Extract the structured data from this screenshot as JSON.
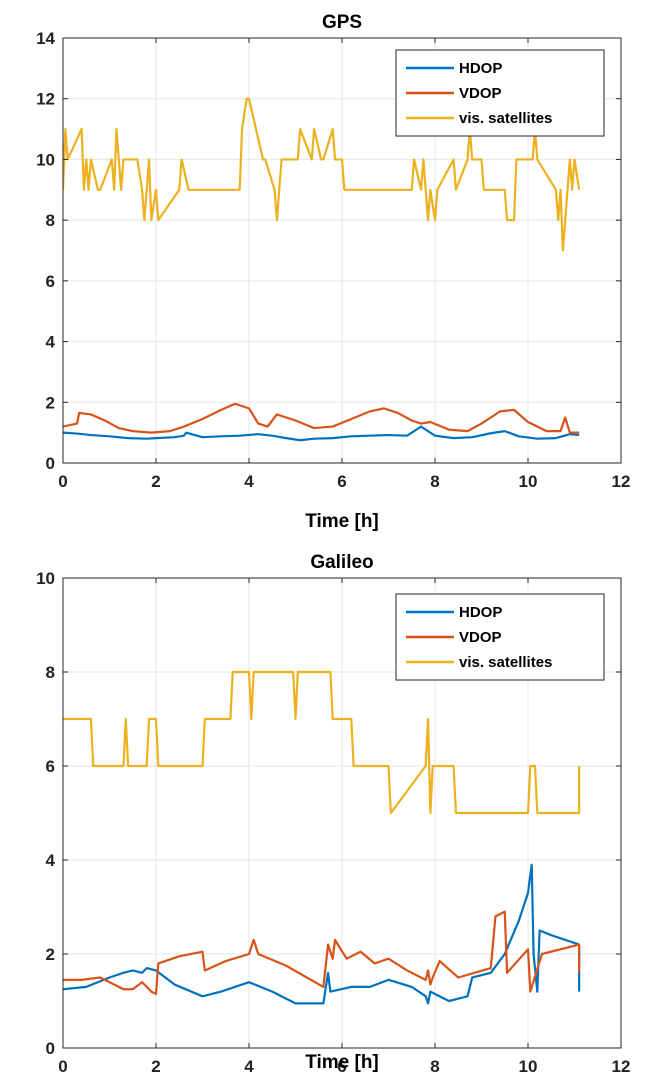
{
  "chart_data": [
    {
      "type": "line",
      "title": "GPS",
      "xlabel": "Time [h]",
      "ylabel": "",
      "xlim": [
        0,
        12
      ],
      "ylim": [
        0,
        14
      ],
      "xticks": [
        0,
        2,
        4,
        6,
        8,
        10,
        12
      ],
      "yticks": [
        0,
        2,
        4,
        6,
        8,
        10,
        12,
        14
      ],
      "grid": true,
      "legend_position": "top-right",
      "series": [
        {
          "name": "HDOP",
          "color": "#0072BD",
          "x": [
            0,
            0.3,
            0.6,
            1.0,
            1.4,
            1.8,
            2.0,
            2.4,
            2.6,
            2.65,
            3.0,
            3.4,
            3.8,
            4.2,
            4.5,
            4.8,
            5.1,
            5.4,
            5.8,
            6.2,
            6.6,
            7.0,
            7.4,
            7.7,
            7.8,
            8.0,
            8.4,
            8.8,
            9.2,
            9.5,
            9.8,
            10.2,
            10.6,
            10.9,
            11.1
          ],
          "y": [
            1.0,
            0.97,
            0.92,
            0.88,
            0.82,
            0.8,
            0.82,
            0.85,
            0.9,
            1.0,
            0.85,
            0.88,
            0.9,
            0.95,
            0.9,
            0.82,
            0.75,
            0.8,
            0.82,
            0.88,
            0.9,
            0.92,
            0.9,
            1.2,
            1.1,
            0.9,
            0.82,
            0.85,
            0.98,
            1.05,
            0.88,
            0.8,
            0.82,
            0.95,
            0.92
          ]
        },
        {
          "name": "VDOP",
          "color": "#D95319",
          "x": [
            0,
            0.3,
            0.35,
            0.6,
            0.9,
            1.2,
            1.5,
            1.9,
            2.3,
            2.6,
            3.0,
            3.4,
            3.7,
            4.0,
            4.2,
            4.4,
            4.6,
            5.0,
            5.4,
            5.8,
            6.2,
            6.6,
            6.9,
            7.2,
            7.5,
            7.7,
            7.9,
            8.3,
            8.7,
            9.0,
            9.4,
            9.7,
            10.0,
            10.4,
            10.7,
            10.8,
            10.9,
            11.1
          ],
          "y": [
            1.2,
            1.3,
            1.65,
            1.6,
            1.4,
            1.15,
            1.05,
            1.0,
            1.05,
            1.2,
            1.45,
            1.75,
            1.95,
            1.8,
            1.3,
            1.2,
            1.6,
            1.4,
            1.15,
            1.2,
            1.45,
            1.7,
            1.8,
            1.65,
            1.4,
            1.3,
            1.35,
            1.1,
            1.05,
            1.3,
            1.7,
            1.75,
            1.35,
            1.05,
            1.05,
            1.5,
            1.0,
            1.0
          ]
        },
        {
          "name": "vis. satellites",
          "color": "#EDB120",
          "x": [
            0,
            0.05,
            0.1,
            0.4,
            0.45,
            0.5,
            0.55,
            0.6,
            0.75,
            0.8,
            1.05,
            1.1,
            1.15,
            1.2,
            1.25,
            1.3,
            1.6,
            1.7,
            1.75,
            1.85,
            1.9,
            2.0,
            2.05,
            2.5,
            2.55,
            2.7,
            2.75,
            3.8,
            3.85,
            3.95,
            4.0,
            4.3,
            4.35,
            4.55,
            4.6,
            4.65,
            4.7,
            5.05,
            5.1,
            5.35,
            5.4,
            5.55,
            5.6,
            5.8,
            5.85,
            6.0,
            6.05,
            7.5,
            7.55,
            7.7,
            7.75,
            7.85,
            7.9,
            8.0,
            8.05,
            8.4,
            8.45,
            8.7,
            8.75,
            8.8,
            8.85,
            9.0,
            9.05,
            9.5,
            9.55,
            9.7,
            9.75,
            10.1,
            10.15,
            10.2,
            10.6,
            10.65,
            10.7,
            10.75,
            10.8,
            10.85,
            10.9,
            10.95,
            11.0,
            11.1
          ],
          "y": [
            9,
            11,
            10,
            11,
            9,
            10,
            9,
            10,
            9,
            9,
            10,
            9,
            11,
            10,
            9,
            10,
            10,
            9,
            8,
            10,
            8,
            9,
            8,
            9,
            10,
            9,
            9,
            9,
            11,
            12,
            12,
            10,
            10,
            9,
            8,
            9,
            10,
            10,
            11,
            10,
            11,
            10,
            10,
            11,
            10,
            10,
            9,
            9,
            10,
            9,
            10,
            8,
            9,
            8,
            9,
            10,
            9,
            10,
            11,
            10,
            10,
            10,
            9,
            9,
            8,
            8,
            10,
            10,
            11,
            10,
            9,
            8,
            9,
            7,
            8,
            9,
            10,
            9,
            10,
            9
          ]
        }
      ]
    },
    {
      "type": "line",
      "title": "Galileo",
      "xlabel": "Time [h]",
      "ylabel": "",
      "xlim": [
        0,
        12
      ],
      "ylim": [
        0,
        10
      ],
      "xticks": [
        0,
        2,
        4,
        6,
        8,
        10,
        12
      ],
      "yticks": [
        0,
        2,
        4,
        6,
        8,
        10
      ],
      "grid": true,
      "legend_position": "top-right",
      "series": [
        {
          "name": "HDOP",
          "color": "#0072BD",
          "x": [
            0,
            0.5,
            1.0,
            1.3,
            1.5,
            1.7,
            1.8,
            2.0,
            2.4,
            3.0,
            3.4,
            4.0,
            4.5,
            5.0,
            5.6,
            5.7,
            5.75,
            6.2,
            6.6,
            7.0,
            7.5,
            7.8,
            7.85,
            7.9,
            8.3,
            8.7,
            8.8,
            9.2,
            9.5,
            9.8,
            10.0,
            10.08,
            10.12,
            10.2,
            10.25,
            10.5,
            11.1,
            11.1
          ],
          "y": [
            1.25,
            1.3,
            1.5,
            1.6,
            1.65,
            1.6,
            1.7,
            1.65,
            1.35,
            1.1,
            1.2,
            1.4,
            1.2,
            0.95,
            0.95,
            1.6,
            1.2,
            1.3,
            1.3,
            1.45,
            1.3,
            1.1,
            0.95,
            1.2,
            1.0,
            1.1,
            1.5,
            1.6,
            2.0,
            2.7,
            3.3,
            3.9,
            2.0,
            1.2,
            2.5,
            2.4,
            2.2,
            1.2
          ]
        },
        {
          "name": "VDOP",
          "color": "#D95319",
          "x": [
            0,
            0.4,
            0.8,
            1.3,
            1.5,
            1.7,
            1.9,
            2.0,
            2.05,
            2.5,
            3.0,
            3.05,
            3.5,
            4.0,
            4.1,
            4.2,
            4.8,
            5.6,
            5.7,
            5.8,
            5.85,
            6.1,
            6.4,
            6.7,
            7.0,
            7.4,
            7.8,
            7.85,
            7.9,
            7.95,
            8.1,
            8.5,
            9.2,
            9.3,
            9.5,
            9.55,
            10.0,
            10.05,
            10.3,
            11.1,
            11.1
          ],
          "y": [
            1.45,
            1.45,
            1.5,
            1.25,
            1.25,
            1.4,
            1.2,
            1.15,
            1.8,
            1.95,
            2.05,
            1.65,
            1.85,
            2.0,
            2.3,
            2.0,
            1.75,
            1.3,
            2.2,
            1.9,
            2.3,
            1.9,
            2.05,
            1.8,
            1.9,
            1.65,
            1.45,
            1.65,
            1.35,
            1.5,
            1.85,
            1.5,
            1.7,
            2.8,
            2.9,
            1.6,
            2.1,
            1.2,
            2.0,
            2.2,
            1.6
          ]
        },
        {
          "name": "vis. satellites",
          "color": "#EDB120",
          "x": [
            0,
            0.6,
            0.65,
            1.3,
            1.35,
            1.4,
            1.45,
            1.8,
            1.85,
            2.0,
            2.05,
            3.0,
            3.05,
            3.6,
            3.65,
            4.0,
            4.05,
            4.1,
            4.15,
            4.95,
            5.0,
            5.05,
            5.75,
            5.8,
            6.2,
            6.25,
            7.0,
            7.05,
            7.8,
            7.85,
            7.9,
            7.95,
            8.4,
            8.45,
            8.9,
            8.95,
            9.3,
            9.35,
            9.9,
            10.0,
            10.05,
            10.15,
            10.2,
            11.1,
            11.1
          ],
          "y": [
            7,
            7,
            6,
            6,
            7,
            6,
            6,
            6,
            7,
            7,
            6,
            6,
            7,
            7,
            8,
            8,
            7,
            8,
            8,
            8,
            7,
            8,
            8,
            7,
            7,
            6,
            6,
            5,
            6,
            7,
            5,
            6,
            6,
            5,
            5,
            5,
            5,
            5,
            5,
            5,
            6,
            6,
            5,
            5,
            6
          ]
        }
      ]
    }
  ]
}
